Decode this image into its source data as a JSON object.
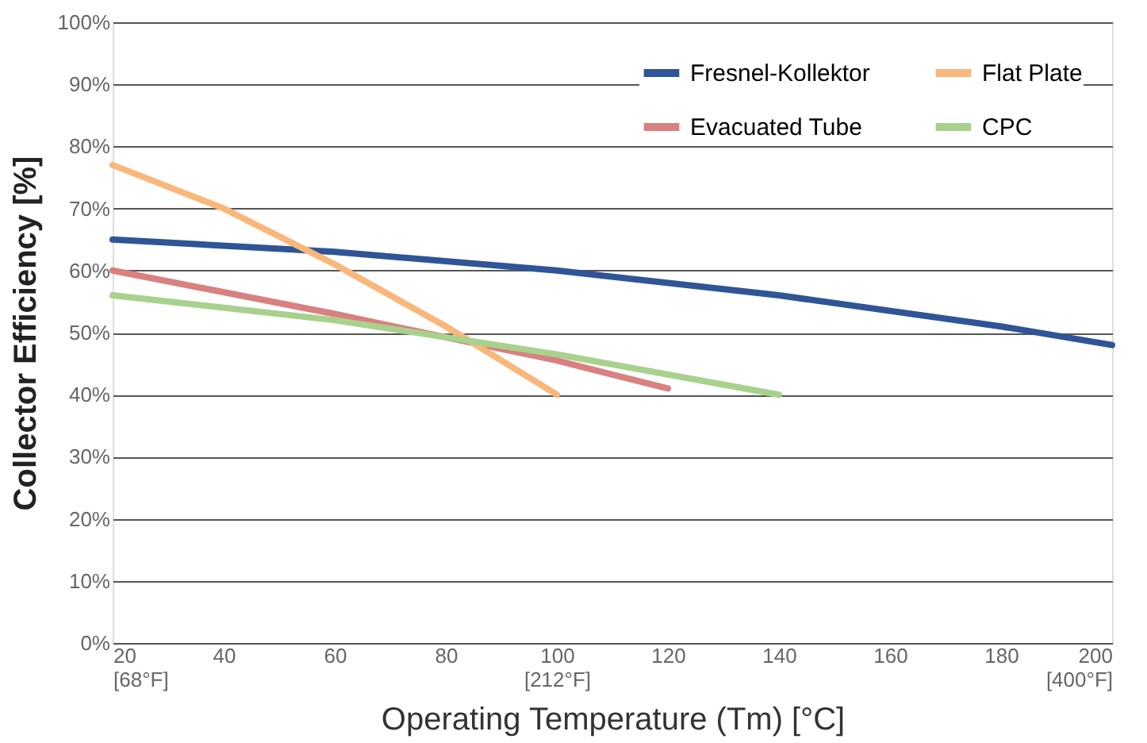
{
  "chart_data": {
    "type": "line",
    "xlabel": "Operating Temperature (Tm) [°C]",
    "ylabel": "Collector Efficiency [%]",
    "xlim": [
      20,
      200
    ],
    "ylim": [
      0,
      100
    ],
    "xticks": [
      {
        "value": 20,
        "label": "20\n[68°F]"
      },
      40,
      60,
      80,
      {
        "value": 100,
        "label": "100\n[212°F]"
      },
      120,
      140,
      160,
      180,
      {
        "value": 200,
        "label": "200\n[400°F]"
      }
    ],
    "yticks": [
      {
        "value": 0,
        "label": "0%"
      },
      {
        "value": 10,
        "label": "10%"
      },
      {
        "value": 20,
        "label": "20%"
      },
      {
        "value": 30,
        "label": "30%"
      },
      {
        "value": 40,
        "label": "40%"
      },
      {
        "value": 50,
        "label": "50%"
      },
      {
        "value": 60,
        "label": "60%"
      },
      {
        "value": 70,
        "label": "70%"
      },
      {
        "value": 80,
        "label": "80%"
      },
      {
        "value": 90,
        "label": "90%"
      },
      {
        "value": 100,
        "label": "100%"
      }
    ],
    "grid": "y",
    "legend": "top right",
    "line_style": "solid",
    "marker": "none",
    "series": [
      {
        "name": "Fresnel-Kollektor",
        "color": "#2f5597",
        "x": [
          20,
          60,
          100,
          140,
          180,
          200
        ],
        "values": [
          65,
          63,
          60,
          56,
          51,
          48
        ]
      },
      {
        "name": "Evacuated Tube",
        "color": "#d98080",
        "x": [
          20,
          60,
          100,
          120
        ],
        "values": [
          60,
          53,
          45.5,
          41
        ]
      },
      {
        "name": "Flat Plate",
        "color": "#f9b77a",
        "x": [
          20,
          40,
          60,
          80,
          100
        ],
        "values": [
          77,
          70,
          61,
          51,
          40
        ]
      },
      {
        "name": "CPC",
        "color": "#a9d18e",
        "x": [
          20,
          60,
          100,
          140
        ],
        "values": [
          56,
          52,
          46.5,
          40
        ]
      }
    ]
  }
}
